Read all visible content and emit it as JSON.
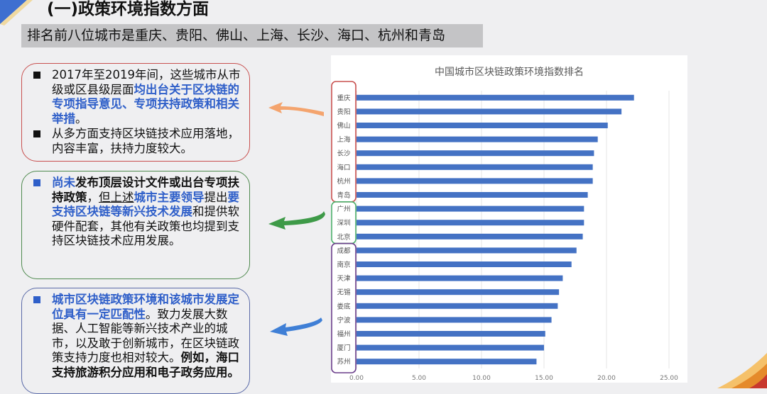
{
  "header": {
    "title": "(一)政策环境指数方面",
    "subtitle": "排名前八位城市是重庆、贵阳、佛山、上海、长沙、海口、杭州和青岛"
  },
  "boxes": [
    {
      "name": "policy-issued-box",
      "mark_color": "#111111",
      "bullets": [
        [
          {
            "t": "2017年至2019年间，这些城市从市级或区县级层面",
            "s": ""
          },
          {
            "t": "均出台关于区块链的专项指导意见、专项扶持政策和相关举措",
            "s": "blue"
          },
          {
            "t": "。",
            "s": ""
          }
        ],
        [
          {
            "t": "从多方面支持区块链技术应用落地，内容丰富，扶持力度较大。",
            "s": ""
          }
        ]
      ]
    },
    {
      "name": "policy-pending-box",
      "mark_color": "#2f5fc9",
      "bullets": [
        [
          {
            "t": "尚未",
            "s": "blue"
          },
          {
            "t": "发布顶层设计文件或出台专项扶持政策",
            "s": "b"
          },
          {
            "t": "，",
            "s": ""
          },
          {
            "t": "但上述",
            "s": "u"
          },
          {
            "t": "城市主要领导",
            "s": "blue"
          },
          {
            "t": "提出",
            "s": ""
          },
          {
            "t": "要支持区块链等新兴技术发展",
            "s": "blue"
          },
          {
            "t": "和提供软硬件配套，其他有关政策也均提到支持区块链技术应用发展。",
            "s": ""
          }
        ]
      ]
    },
    {
      "name": "policy-match-box",
      "mark_color": "#2f5fc9",
      "bullets": [
        [
          {
            "t": "城市区块链政策环境和该城市发展定位具有一定匹配性",
            "s": "blue"
          },
          {
            "t": "。致力发展大数据、人工智能等新兴技术产业的城市，以及敢于创新城市，在区块链政策支持力度也相对较大。",
            "s": ""
          },
          {
            "t": "例如，海口支持旅游积分应用和电子政务应用。",
            "s": "b"
          }
        ]
      ]
    }
  ],
  "colors": {
    "bar": "#4472c4",
    "group1": "#c8504f",
    "group2": "#4caf6a",
    "group3": "#6a3d8a",
    "arrow1": "#f4a46e",
    "arrow2": "#3e9a48",
    "arrow3": "#3f7fd6"
  },
  "chart_data": {
    "type": "bar",
    "orientation": "horizontal",
    "title": "中国城市区块链政策环境指数排名",
    "categories": [
      "重庆",
      "贵阳",
      "佛山",
      "上海",
      "长沙",
      "海口",
      "杭州",
      "青岛",
      "广州",
      "深圳",
      "北京",
      "成都",
      "南京",
      "天津",
      "无锡",
      "娄底",
      "宁波",
      "福州",
      "厦门",
      "苏州"
    ],
    "values": [
      22.2,
      21.2,
      20.1,
      19.3,
      19.0,
      18.9,
      18.9,
      18.5,
      18.2,
      18.2,
      18.1,
      17.6,
      17.2,
      16.5,
      16.2,
      16.1,
      15.6,
      15.1,
      15.0,
      14.4
    ],
    "xlim": [
      0,
      25
    ],
    "xticks": [
      "0.00",
      "5.00",
      "10.00",
      "15.00",
      "20.00",
      "25.00"
    ],
    "grid": true,
    "legend": "none",
    "groups": [
      {
        "from": 0,
        "to": 7
      },
      {
        "from": 8,
        "to": 10
      },
      {
        "from": 11,
        "to": 19
      }
    ]
  }
}
